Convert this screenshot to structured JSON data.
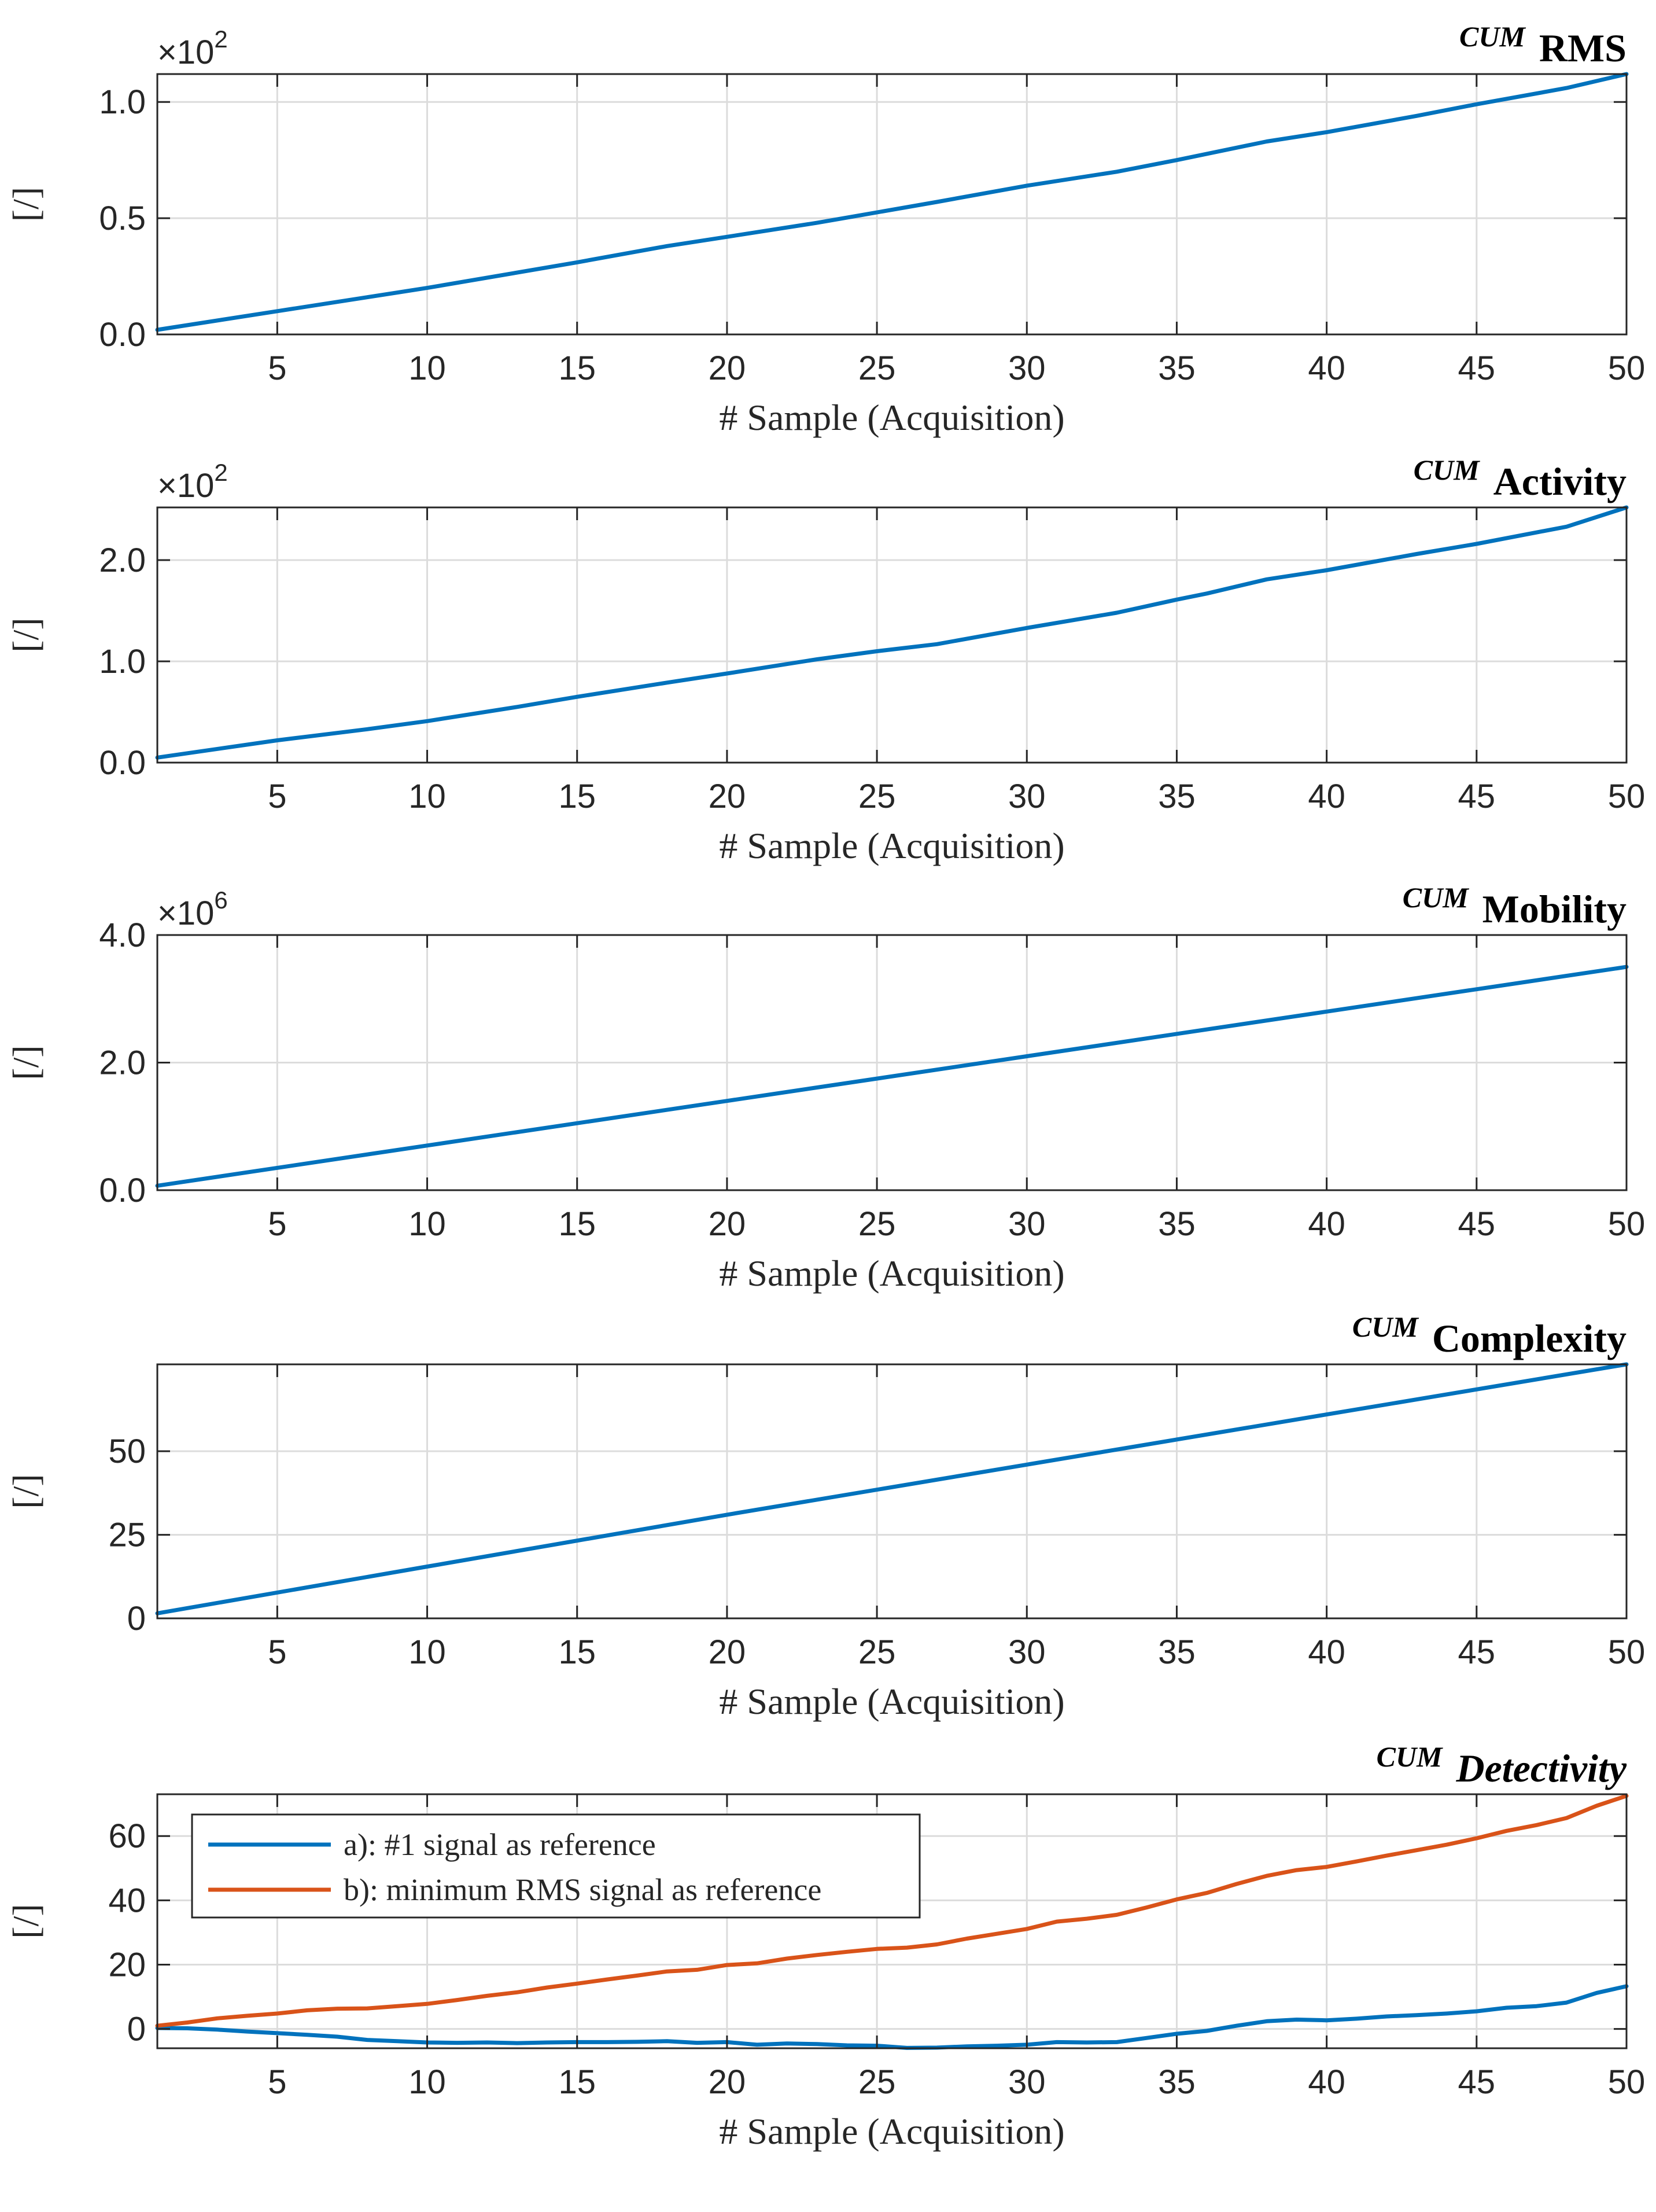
{
  "chart_data": [
    {
      "type": "line",
      "title_prefix": "CUM",
      "title": "RMS",
      "italic_title": false,
      "xlabel": "# Sample (Acquisition)",
      "ylabel": "[/]",
      "exponent_base": "×10",
      "exponent_power": "2",
      "xlim": [
        1,
        50
      ],
      "ylim": [
        0.0,
        1.12
      ],
      "xticks": [
        5,
        10,
        15,
        20,
        25,
        30,
        35,
        40,
        45,
        50
      ],
      "yticks": [
        0.0,
        0.5,
        1.0
      ],
      "ytick_labels": [
        "0.0",
        "0.5",
        "1.0"
      ],
      "grid": true,
      "series": [
        {
          "name": "",
          "color": "#0072BD",
          "x": [
            1,
            5,
            8,
            10,
            15,
            18,
            20,
            23,
            27,
            30,
            33,
            35,
            38,
            40,
            43,
            45,
            48,
            50
          ],
          "y": [
            0.02,
            0.1,
            0.16,
            0.2,
            0.31,
            0.38,
            0.42,
            0.48,
            0.57,
            0.64,
            0.7,
            0.75,
            0.83,
            0.87,
            0.94,
            0.99,
            1.06,
            1.12
          ]
        }
      ]
    },
    {
      "type": "line",
      "title_prefix": "CUM",
      "title": "Activity",
      "italic_title": false,
      "xlabel": "# Sample (Acquisition)",
      "ylabel": "[/]",
      "exponent_base": "×10",
      "exponent_power": "2",
      "xlim": [
        1,
        50
      ],
      "ylim": [
        0.0,
        2.52
      ],
      "xticks": [
        5,
        10,
        15,
        20,
        25,
        30,
        35,
        40,
        45,
        50
      ],
      "yticks": [
        0.0,
        1.0,
        2.0
      ],
      "ytick_labels": [
        "0.0",
        "1.0",
        "2.0"
      ],
      "grid": true,
      "series": [
        {
          "name": "",
          "color": "#0072BD",
          "x": [
            1,
            5,
            8,
            10,
            13,
            15,
            18,
            20,
            23,
            25,
            27,
            30,
            33,
            35,
            36,
            38,
            40,
            43,
            45,
            48,
            50
          ],
          "y": [
            0.05,
            0.22,
            0.33,
            0.41,
            0.55,
            0.65,
            0.79,
            0.88,
            1.02,
            1.1,
            1.17,
            1.33,
            1.48,
            1.61,
            1.67,
            1.81,
            1.9,
            2.06,
            2.16,
            2.33,
            2.52
          ]
        }
      ]
    },
    {
      "type": "line",
      "title_prefix": "CUM",
      "title": "Mobility",
      "italic_title": false,
      "xlabel": "# Sample (Acquisition)",
      "ylabel": "[/]",
      "exponent_base": "×10",
      "exponent_power": "6",
      "xlim": [
        1,
        50
      ],
      "ylim": [
        0.0,
        4.0
      ],
      "xticks": [
        5,
        10,
        15,
        20,
        25,
        30,
        35,
        40,
        45,
        50
      ],
      "yticks": [
        0.0,
        2.0,
        4.0
      ],
      "ytick_labels": [
        "0.0",
        "2.0",
        "4.0"
      ],
      "grid": true,
      "series": [
        {
          "name": "",
          "color": "#0072BD",
          "x": [
            1,
            10,
            20,
            30,
            40,
            50
          ],
          "y": [
            0.07,
            0.7,
            1.4,
            2.1,
            2.8,
            3.5
          ]
        }
      ]
    },
    {
      "type": "line",
      "title_prefix": "CUM",
      "title": "Complexity",
      "italic_title": false,
      "xlabel": "# Sample (Acquisition)",
      "ylabel": "[/]",
      "exponent_base": "",
      "exponent_power": "",
      "xlim": [
        1,
        50
      ],
      "ylim": [
        0,
        76
      ],
      "xticks": [
        5,
        10,
        15,
        20,
        25,
        30,
        35,
        40,
        45,
        50
      ],
      "yticks": [
        0,
        25,
        50
      ],
      "ytick_labels": [
        "0",
        "25",
        "50"
      ],
      "grid": true,
      "series": [
        {
          "name": "",
          "color": "#0072BD",
          "x": [
            1,
            10,
            20,
            30,
            40,
            50
          ],
          "y": [
            1.5,
            15.5,
            31.0,
            46.0,
            61.0,
            76.0
          ]
        }
      ]
    },
    {
      "type": "line",
      "title_prefix": "CUM",
      "title": "Detectivity",
      "italic_title": true,
      "xlabel": "# Sample (Acquisition)",
      "ylabel": "[/]",
      "exponent_base": "",
      "exponent_power": "",
      "xlim": [
        1,
        50
      ],
      "ylim": [
        -6,
        73
      ],
      "xticks": [
        5,
        10,
        15,
        20,
        25,
        30,
        35,
        40,
        45,
        50
      ],
      "yticks": [
        0,
        20,
        40,
        60
      ],
      "ytick_labels": [
        "0",
        "20",
        "40",
        "60"
      ],
      "grid": true,
      "legend_position": "top-left",
      "series": [
        {
          "name": "a): #1 signal as reference",
          "color": "#0072BD",
          "x": [
            1,
            2,
            3,
            4,
            5,
            6,
            7,
            8,
            9,
            10,
            11,
            12,
            13,
            14,
            15,
            16,
            17,
            18,
            19,
            20,
            21,
            22,
            23,
            24,
            25,
            26,
            27,
            28,
            29,
            30,
            31,
            32,
            33,
            34,
            35,
            36,
            37,
            38,
            39,
            40,
            41,
            42,
            43,
            44,
            45,
            46,
            47,
            48,
            49,
            50
          ],
          "y": [
            0.3,
            0.2,
            -0.2,
            -0.8,
            -1.3,
            -1.8,
            -2.4,
            -3.4,
            -3.8,
            -4.2,
            -4.3,
            -4.2,
            -4.4,
            -4.2,
            -4.1,
            -4.1,
            -4.0,
            -3.8,
            -4.3,
            -4.1,
            -4.9,
            -4.5,
            -4.7,
            -5.1,
            -5.2,
            -5.9,
            -5.8,
            -5.4,
            -5.2,
            -4.9,
            -4.1,
            -4.2,
            -4.1,
            -2.8,
            -1.5,
            -0.6,
            1.0,
            2.4,
            2.9,
            2.7,
            3.2,
            3.9,
            4.3,
            4.8,
            5.5,
            6.6,
            7.1,
            8.2,
            11.2,
            13.3
          ]
        },
        {
          "name": "b): minimum RMS signal as reference",
          "color": "#D95319",
          "x": [
            1,
            2,
            3,
            4,
            5,
            6,
            7,
            8,
            9,
            10,
            11,
            12,
            13,
            14,
            15,
            16,
            17,
            18,
            19,
            20,
            21,
            22,
            23,
            24,
            25,
            26,
            27,
            28,
            29,
            30,
            31,
            32,
            33,
            34,
            35,
            36,
            37,
            38,
            39,
            40,
            41,
            42,
            43,
            44,
            45,
            46,
            47,
            48,
            49,
            50
          ],
          "y": [
            1.0,
            2.0,
            3.3,
            4.1,
            4.8,
            5.8,
            6.3,
            6.4,
            7.1,
            7.8,
            9.0,
            10.3,
            11.4,
            12.9,
            14.1,
            15.4,
            16.6,
            17.9,
            18.4,
            19.9,
            20.4,
            21.9,
            23.0,
            24.0,
            24.9,
            25.3,
            26.3,
            28.1,
            29.6,
            31.1,
            33.4,
            34.3,
            35.5,
            37.8,
            40.3,
            42.3,
            45.1,
            47.6,
            49.4,
            50.4,
            52.1,
            53.9,
            55.6,
            57.3,
            59.3,
            61.6,
            63.4,
            65.6,
            69.4,
            72.5
          ]
        }
      ]
    }
  ]
}
